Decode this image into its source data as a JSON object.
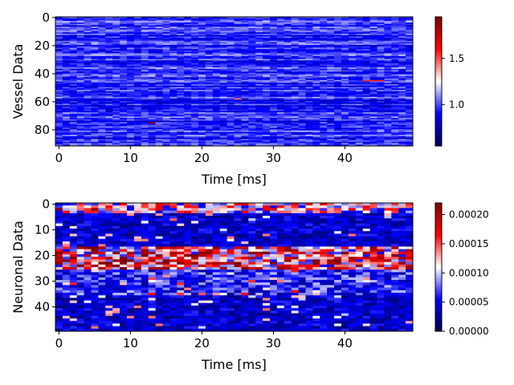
{
  "chart_data": [
    {
      "type": "heatmap",
      "title": "",
      "xlabel": "Time [ms]",
      "ylabel": "Vessel Data",
      "n_cols": 50,
      "n_rows": 92,
      "xlim": [
        -0.5,
        49.5
      ],
      "ylim": [
        91.5,
        -0.5
      ],
      "x_ticks": [
        0,
        10,
        20,
        30,
        40
      ],
      "y_ticks": [
        0,
        20,
        40,
        60,
        80
      ],
      "colormap": "seismic",
      "colorbar": {
        "min": 0.55,
        "max": 1.95,
        "ticks": [
          1.0,
          1.5
        ],
        "tick_labels": [
          "1.0",
          "1.5"
        ]
      },
      "profile": {
        "typical_value": 0.95,
        "range_note": "mostly 0.7–1.2; a few hot spots up to ~1.9 near (x≈13, y≈75), (x≈44, y≈45), (x≈25, y≈58)"
      },
      "grid": false
    },
    {
      "type": "heatmap",
      "title": "",
      "xlabel": "Time [ms]",
      "ylabel": "Neuronal Data",
      "n_cols": 50,
      "n_rows": 50,
      "xlim": [
        -0.5,
        49.5
      ],
      "ylim": [
        49.5,
        -0.5
      ],
      "x_ticks": [
        0,
        10,
        20,
        30,
        40
      ],
      "y_ticks": [
        0,
        10,
        20,
        30,
        40
      ],
      "colormap": "seismic",
      "colorbar": {
        "min": 0.0,
        "max": 0.00022,
        "ticks": [
          0.0,
          5e-05,
          0.0001,
          0.00015,
          0.0002
        ],
        "tick_labels": [
          "0.00000",
          "0.00005",
          "0.00010",
          "0.00015",
          "0.00020"
        ]
      },
      "profile": {
        "row_band_means": [
          {
            "rows": [
              0,
              3
            ],
            "mean": 0.00011
          },
          {
            "rows": [
              4,
              16
            ],
            "mean": 4e-05
          },
          {
            "rows": [
              17,
              25
            ],
            "mean": 0.00014
          },
          {
            "rows": [
              26,
              35
            ],
            "mean": 6e-05
          },
          {
            "rows": [
              36,
              49
            ],
            "mean": 4e-05
          }
        ]
      },
      "grid": false
    }
  ]
}
